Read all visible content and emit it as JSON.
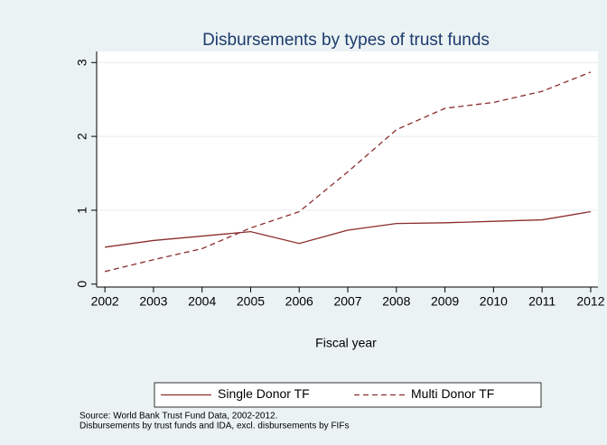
{
  "chart_data": {
    "type": "line",
    "title": "Disbursements by types of trust funds",
    "x_label": "Fiscal year",
    "x": [
      2002,
      2003,
      2004,
      2005,
      2006,
      2007,
      2008,
      2009,
      2010,
      2011,
      2012
    ],
    "series": [
      {
        "name": "Single Donor TF",
        "color": "#8b2d2d",
        "dash": "solid",
        "values": [
          0.5,
          0.59,
          0.65,
          0.71,
          0.55,
          0.73,
          0.82,
          0.83,
          0.85,
          0.87,
          0.98
        ]
      },
      {
        "name": "Multi Donor TF",
        "color": "#8b2d2d",
        "dash": "dashed",
        "values": [
          0.17,
          0.33,
          0.48,
          0.76,
          0.98,
          1.52,
          2.09,
          2.38,
          2.46,
          2.61,
          2.87
        ]
      }
    ],
    "xlim": [
      2001.83,
      2012.15
    ],
    "xticks": [
      2002,
      2003,
      2004,
      2005,
      2006,
      2007,
      2008,
      2009,
      2010,
      2011,
      2012
    ],
    "ylim": [
      -0.04,
      3.15
    ],
    "yticks": [
      0,
      1,
      2,
      3
    ],
    "grid": true,
    "legend": "bottom",
    "notes": [
      "Source: World Bank Trust Fund Data, 2002-2012.",
      "Disbursements by trust funds and IDA, excl. disbursements by FIFs"
    ]
  }
}
